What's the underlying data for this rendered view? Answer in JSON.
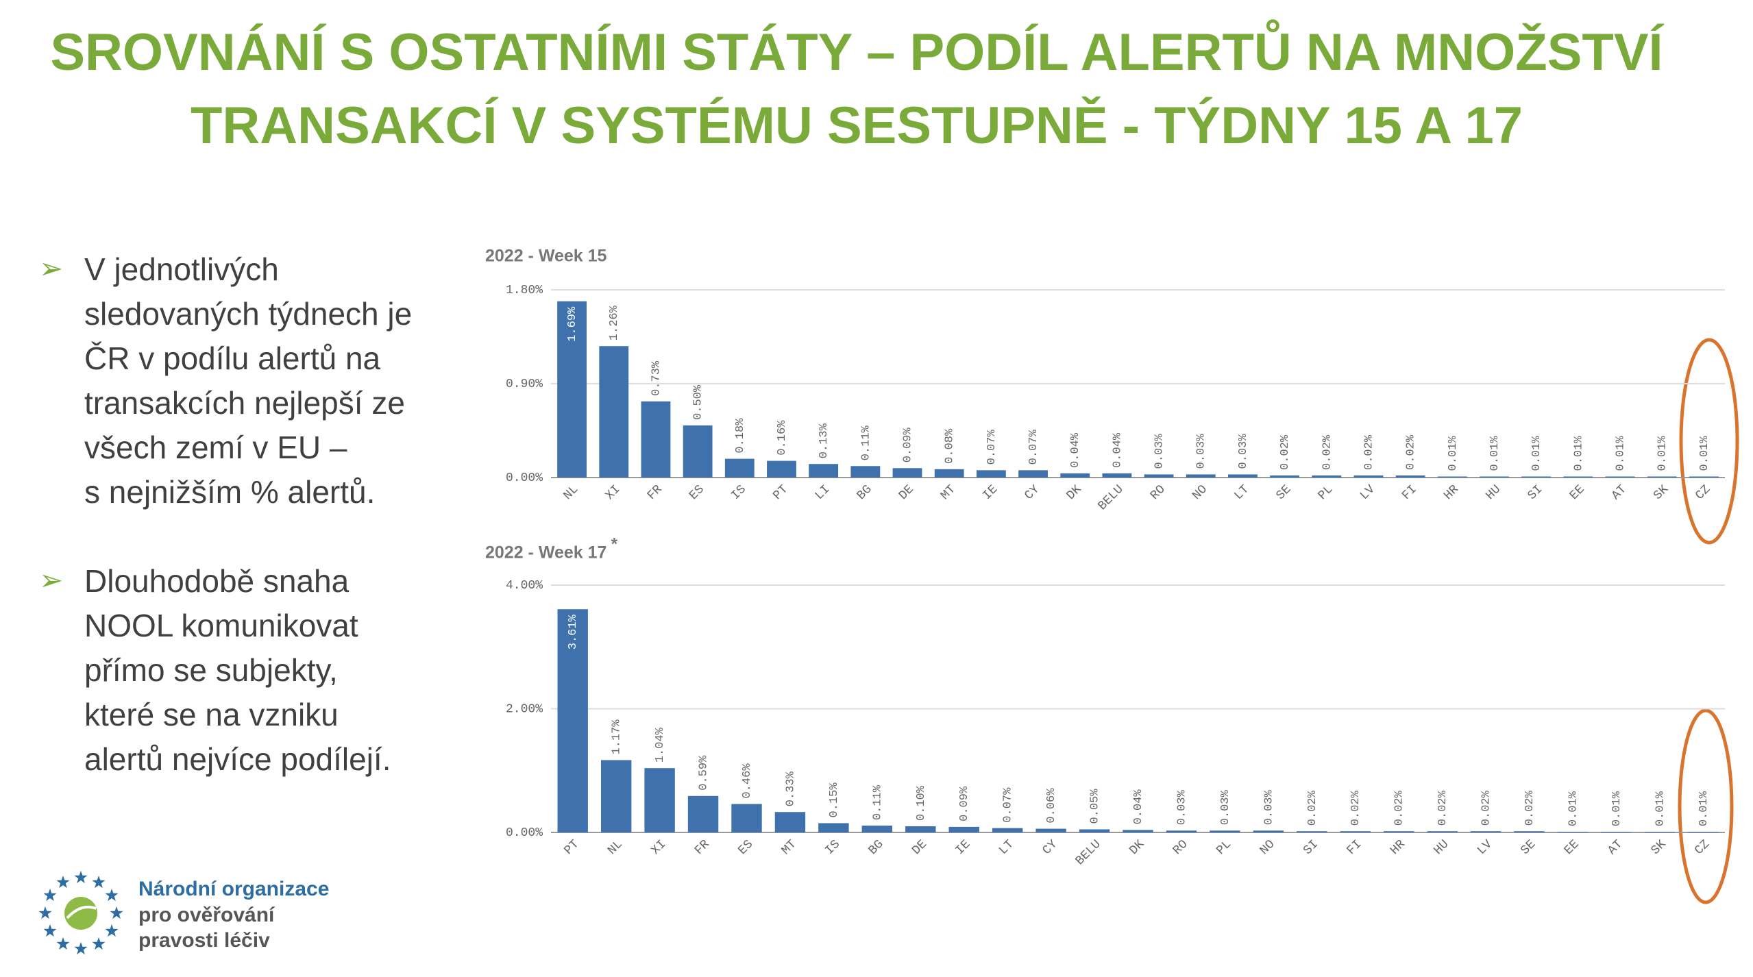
{
  "title": [
    "SROVNÁNÍ S OSTATNÍMI STÁTY – PODÍL ALERTŮ NA MNOŽSTVÍ",
    "TRANSAKCÍ V SYSTÉMU SESTUPNĚ - TÝDNY 15 A 17"
  ],
  "bullets": [
    [
      "V jednotlivých",
      "sledovaných týdnech je",
      "ČR v podílu alertů na",
      "transakcích nejlepší ze",
      "všech zemí v EU –",
      "s nejnižším % alertů."
    ],
    [
      "Dlouhodobě snaha",
      "NOOL komunikovat",
      "přímo se subjekty,",
      "které se na vzniku",
      "alertů nejvíce podílejí."
    ]
  ],
  "logo": [
    "Národní organizace",
    "pro ověřování",
    "pravosti léčiv"
  ],
  "chart_data": [
    {
      "type": "bar",
      "title": "2022 - Week 15",
      "color": "#3f72ad",
      "grid": true,
      "categories": [
        "NL",
        "XI",
        "FR",
        "ES",
        "IS",
        "PT",
        "LI",
        "BG",
        "DE",
        "MT",
        "IE",
        "CY",
        "DK",
        "BELU",
        "RO",
        "NO",
        "LT",
        "SE",
        "PL",
        "LV",
        "FI",
        "HR",
        "HU",
        "SI",
        "EE",
        "AT",
        "SK",
        "CZ"
      ],
      "values": [
        1.69,
        1.26,
        0.73,
        0.5,
        0.18,
        0.16,
        0.13,
        0.11,
        0.09,
        0.08,
        0.07,
        0.07,
        0.04,
        0.04,
        0.03,
        0.03,
        0.03,
        0.02,
        0.02,
        0.02,
        0.02,
        0.01,
        0.01,
        0.01,
        0.01,
        0.01,
        0.01,
        0.01
      ],
      "value_labels": [
        "1.69%",
        "1.26%",
        "0.73%",
        "0.50%",
        "0.18%",
        "0.16%",
        "0.13%",
        "0.11%",
        "0.09%",
        "0.08%",
        "0.07%",
        "0.07%",
        "0.04%",
        "0.04%",
        "0.03%",
        "0.03%",
        "0.03%",
        "0.02%",
        "0.02%",
        "0.02%",
        "0.02%",
        "0.01%",
        "0.01%",
        "0.01%",
        "0.01%",
        "0.01%",
        "0.01%",
        "0.01%"
      ],
      "ylim": [
        0,
        1.8
      ],
      "yticks": [
        {
          "value": 0,
          "label": "0.00%"
        },
        {
          "value": 0.9,
          "label": "0.90%"
        },
        {
          "value": 1.8,
          "label": "1.80%"
        }
      ]
    },
    {
      "type": "bar",
      "title": "2022 - Week 17",
      "annotation": "*",
      "color": "#3f72ad",
      "grid": true,
      "categories": [
        "PT",
        "NL",
        "XI",
        "FR",
        "ES",
        "MT",
        "IS",
        "BG",
        "DE",
        "IE",
        "LT",
        "CY",
        "BELU",
        "DK",
        "RO",
        "PL",
        "NO",
        "SI",
        "FI",
        "HR",
        "HU",
        "LV",
        "SE",
        "EE",
        "AT",
        "SK",
        "CZ"
      ],
      "values": [
        3.61,
        1.17,
        1.04,
        0.59,
        0.46,
        0.33,
        0.15,
        0.11,
        0.1,
        0.09,
        0.07,
        0.06,
        0.05,
        0.04,
        0.03,
        0.03,
        0.03,
        0.02,
        0.02,
        0.02,
        0.02,
        0.02,
        0.02,
        0.01,
        0.01,
        0.01,
        0.01
      ],
      "value_labels": [
        "3.61%",
        "1.17%",
        "1.04%",
        "0.59%",
        "0.46%",
        "0.33%",
        "0.15%",
        "0.11%",
        "0.10%",
        "0.09%",
        "0.07%",
        "0.06%",
        "0.05%",
        "0.04%",
        "0.03%",
        "0.03%",
        "0.03%",
        "0.02%",
        "0.02%",
        "0.02%",
        "0.02%",
        "0.02%",
        "0.02%",
        "0.01%",
        "0.01%",
        "0.01%",
        "0.01%"
      ],
      "ylim": [
        0,
        4
      ],
      "yticks": [
        {
          "value": 0,
          "label": "0.00%"
        },
        {
          "value": 2,
          "label": "2.00%"
        },
        {
          "value": 4,
          "label": "4.00%"
        }
      ]
    }
  ]
}
